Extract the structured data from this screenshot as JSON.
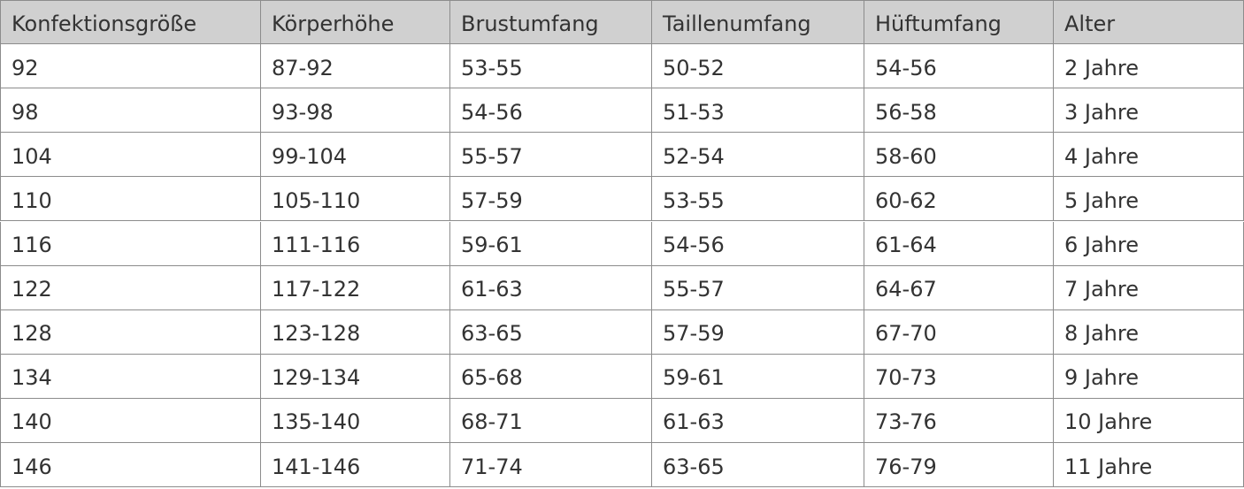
{
  "table": {
    "header": [
      "Konfektionsgröße",
      "Körperhöhe",
      "Brustumfang",
      "Taillenumfang",
      "Hüftumfang",
      "Alter"
    ],
    "rows": [
      [
        "92",
        "87-92",
        "53-55",
        "50-52",
        "54-56",
        "2 Jahre"
      ],
      [
        "98",
        "93-98",
        "54-56",
        "51-53",
        "56-58",
        "3 Jahre"
      ],
      [
        "104",
        "99-104",
        "55-57",
        "52-54",
        "58-60",
        "4 Jahre"
      ],
      [
        "110",
        "105-110",
        "57-59",
        "53-55",
        "60-62",
        "5 Jahre"
      ],
      [
        "116",
        "111-116",
        "59-61",
        "54-56",
        "61-64",
        "6 Jahre"
      ],
      [
        "122",
        "117-122",
        "61-63",
        "55-57",
        "64-67",
        "7 Jahre"
      ],
      [
        "128",
        "123-128",
        "63-65",
        "57-59",
        "67-70",
        "8 Jahre"
      ],
      [
        "134",
        "129-134",
        "65-68",
        "59-61",
        "70-73",
        "9 Jahre"
      ],
      [
        "140",
        "135-140",
        "68-71",
        "61-63",
        "73-76",
        "10 Jahre"
      ],
      [
        "146",
        "141-146",
        "71-74",
        "63-65",
        "76-79",
        "11 Jahre"
      ]
    ]
  }
}
